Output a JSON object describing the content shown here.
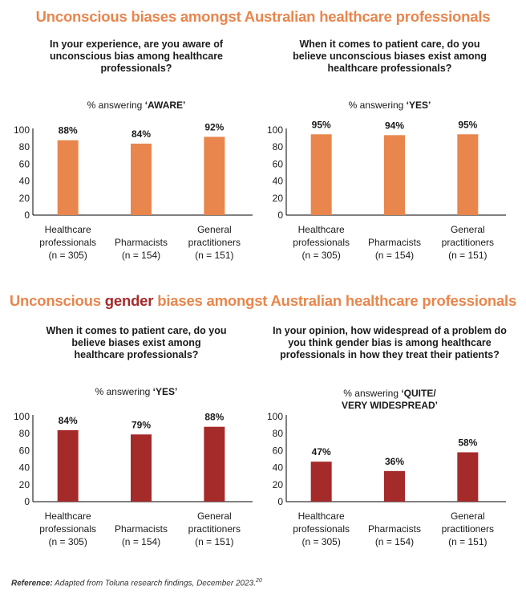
{
  "sections": [
    {
      "title_pre": "Unconscious biases amongst Australian healthcare professionals",
      "title_hl": "",
      "title_post": ""
    },
    {
      "title_pre": "Unconscious ",
      "title_hl": "gender",
      "title_post": " biases amongst Australian healthcare professionals"
    }
  ],
  "colors": {
    "orange": "#e8864d",
    "red": "#a52a2a"
  },
  "reference": {
    "label": "Reference:",
    "text": " Adapted from Toluna research findings, December 2023.",
    "sup": "20"
  },
  "chart_data": [
    {
      "type": "bar",
      "title": "In your experience, are you aware of unconscious bias among healthcare professionals?",
      "measure_prefix": "% answering ",
      "measure_bold": "‘AWARE’",
      "categories": [
        [
          "Healthcare",
          "professionals",
          "(n = 305)"
        ],
        [
          "Pharmacists",
          "(n = 154)"
        ],
        [
          "General",
          "practitioners",
          "(n = 151)"
        ]
      ],
      "values": [
        88,
        84,
        92
      ],
      "value_labels": [
        "88%",
        "84%",
        "92%"
      ],
      "yticks": [
        0,
        20,
        40,
        60,
        80,
        100
      ],
      "ylim": [
        0,
        100
      ],
      "grid": false,
      "color": "#e8864d"
    },
    {
      "type": "bar",
      "title": "When it comes to patient care, do you believe unconscious biases exist among healthcare professionals?",
      "measure_prefix": "% answering ",
      "measure_bold": "‘YES’",
      "categories": [
        [
          "Healthcare",
          "professionals",
          "(n = 305)"
        ],
        [
          "Pharmacists",
          "(n = 154)"
        ],
        [
          "General",
          "practitioners",
          "(n = 151)"
        ]
      ],
      "values": [
        95,
        94,
        95
      ],
      "value_labels": [
        "95%",
        "94%",
        "95%"
      ],
      "yticks": [
        0,
        20,
        40,
        60,
        80,
        100
      ],
      "ylim": [
        0,
        100
      ],
      "grid": false,
      "color": "#e8864d"
    },
    {
      "type": "bar",
      "title": "When it comes to patient care, do you believe biases exist among healthcare professionals?",
      "measure_prefix": "% answering ",
      "measure_bold": "‘YES’",
      "categories": [
        [
          "Healthcare",
          "professionals",
          "(n = 305)"
        ],
        [
          "Pharmacists",
          "(n = 154)"
        ],
        [
          "General",
          "practitioners",
          "(n = 151)"
        ]
      ],
      "values": [
        84,
        79,
        88
      ],
      "value_labels": [
        "84%",
        "79%",
        "88%"
      ],
      "yticks": [
        0,
        20,
        40,
        60,
        80,
        100
      ],
      "ylim": [
        0,
        100
      ],
      "grid": false,
      "color": "#a52a2a"
    },
    {
      "type": "bar",
      "title": "In your opinion, how widespread of a problem do you think gender bias is among healthcare professionals in how they treat their patients?",
      "measure_prefix": "% answering ",
      "measure_bold": "‘QUITE/ VERY WIDESPREAD’",
      "categories": [
        [
          "Healthcare",
          "professionals",
          "(n = 305)"
        ],
        [
          "Pharmacists",
          "(n = 154)"
        ],
        [
          "General",
          "practitioners",
          "(n = 151)"
        ]
      ],
      "values": [
        47,
        36,
        58
      ],
      "value_labels": [
        "47%",
        "36%",
        "58%"
      ],
      "yticks": [
        0,
        20,
        40,
        60,
        80,
        100
      ],
      "ylim": [
        0,
        100
      ],
      "grid": false,
      "color": "#a52a2a"
    }
  ]
}
